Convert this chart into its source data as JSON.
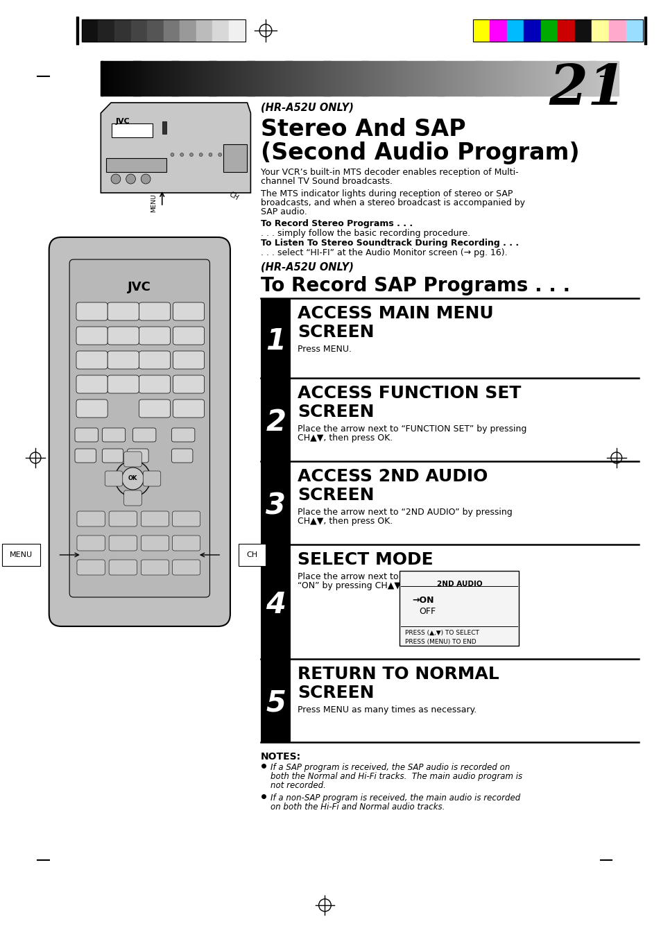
{
  "page_number": "21",
  "bg_color": "#ffffff",
  "header_bar_colors_left": [
    "#111111",
    "#222222",
    "#333333",
    "#444444",
    "#555555",
    "#777777",
    "#999999",
    "#bbbbbb",
    "#d8d8d8",
    "#f0f0f0"
  ],
  "header_bar_colors_right": [
    "#ffff00",
    "#ff00ff",
    "#00bbff",
    "#0000bb",
    "#00aa00",
    "#cc0000",
    "#111111",
    "#ffff99",
    "#ffaacc",
    "#99ddff"
  ],
  "italic_heading1": "(HR-A52U ONLY)",
  "bold_heading1": "Stereo And SAP",
  "bold_heading2": "(Second Audio Program)",
  "para1_lines": [
    "Your VCR’s built-in MTS decoder enables reception of Multi-",
    "channel TV Sound broadcasts."
  ],
  "para2_lines": [
    "The MTS indicator lights during reception of stereo or SAP",
    "broadcasts, and when a stereo broadcast is accompanied by",
    "SAP audio."
  ],
  "bold_sub1": "To Record Stereo Programs . . .",
  "sub1_text": ". . . simply follow the basic recording procedure.",
  "bold_sub2": "To Listen To Stereo Soundtrack During Recording . . .",
  "sub2_text": ". . . select “HI-FI” at the Audio Monitor screen (→ pg. 16).",
  "italic_heading2": "(HR-A52U ONLY)",
  "bold_heading3": "To Record SAP Programs . . .",
  "steps": [
    {
      "num": "1",
      "title": "ACCESS MAIN MENU\nSCREEN",
      "text": "Press MENU."
    },
    {
      "num": "2",
      "title": "ACCESS FUNCTION SET\nSCREEN",
      "text": "Place the arrow next to “FUNCTION SET” by pressing\nCH▲▼, then press OK."
    },
    {
      "num": "3",
      "title": "ACCESS 2ND AUDIO\nSCREEN",
      "text": "Place the arrow next to “2ND AUDIO” by pressing\nCH▲▼, then press OK."
    },
    {
      "num": "4",
      "title": "SELECT MODE",
      "text": "Place the arrow next to\n“ON” by pressing CH▲▼.",
      "has_box": true,
      "box_title": "2ND AUDIO",
      "box_lines": [
        "→ON",
        "OFF"
      ],
      "box_footer": "PRESS (▲,▼) TO SELECT\nPRESS (MENU) TO END"
    },
    {
      "num": "5",
      "title": "RETURN TO NORMAL\nSCREEN",
      "text": "Press MENU as many times as necessary."
    }
  ],
  "notes_title": "NOTES:",
  "notes": [
    "If a SAP program is received, the SAP audio is recorded on\nboth the Normal and Hi-Fi tracks.  The main audio program is\nnot recorded.",
    "If a non-SAP program is received, the main audio is recorded\non both the Hi-Fi and Normal audio tracks."
  ]
}
